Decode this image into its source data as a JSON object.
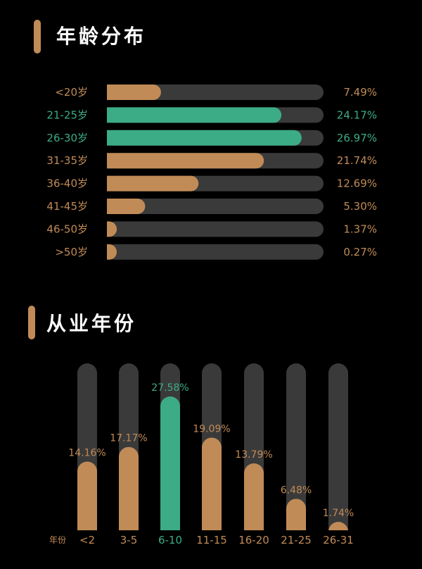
{
  "colors": {
    "background": "#000000",
    "track": "#3a3a3a",
    "accent": "#c18b57",
    "highlight": "#3cac86",
    "title": "#ffffff"
  },
  "age_section": {
    "title": "年龄分布"
  },
  "industry_section": {
    "title": "从业年份"
  },
  "chart_data": [
    {
      "type": "bar",
      "orientation": "horizontal",
      "title": "年龄分布",
      "categories": [
        "<20岁",
        "21-25岁",
        "26-30岁",
        "31-35岁",
        "36-40岁",
        "41-45岁",
        "46-50岁",
        ">50岁"
      ],
      "values": [
        7.49,
        24.17,
        26.97,
        21.74,
        12.69,
        5.3,
        1.37,
        0.27
      ],
      "labels": [
        "7.49%",
        "24.17%",
        "26.97%",
        "21.74%",
        "12.69%",
        "5.30%",
        "1.37%",
        "0.27%"
      ],
      "highlighted": [
        false,
        true,
        true,
        false,
        false,
        false,
        false,
        false
      ],
      "xlim": [
        0,
        30
      ],
      "grid": false,
      "legend": "none"
    },
    {
      "type": "bar",
      "orientation": "vertical",
      "title": "从业年份",
      "xlabel": "年份",
      "categories": [
        "<2",
        "3-5",
        "6-10",
        "11-15",
        "16-20",
        "21-25",
        "26-31"
      ],
      "values": [
        14.16,
        17.17,
        27.58,
        19.09,
        13.79,
        6.48,
        1.74
      ],
      "labels": [
        "14.16%",
        "17.17%",
        "27.58%",
        "19.09%",
        "13.79%",
        "6.48%",
        "1.74%"
      ],
      "highlighted": [
        false,
        false,
        true,
        false,
        false,
        false,
        false
      ],
      "grid": false,
      "legend": "none"
    }
  ]
}
